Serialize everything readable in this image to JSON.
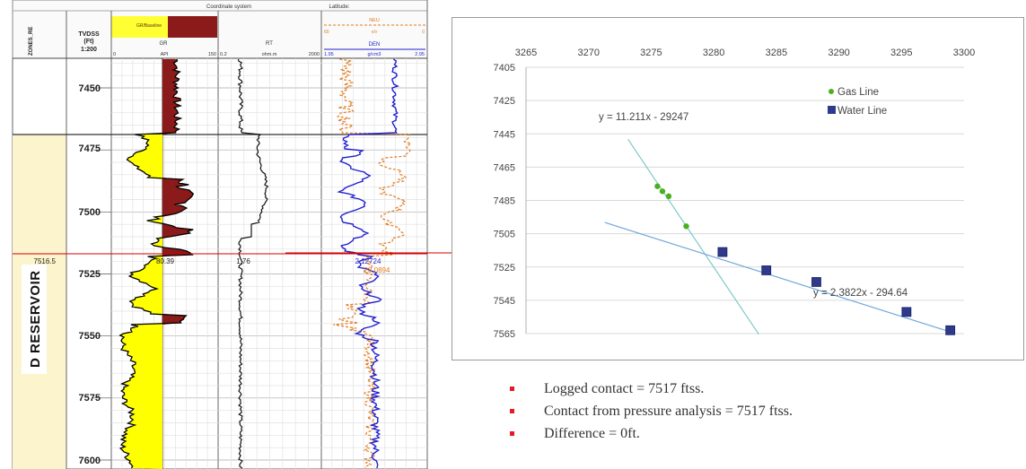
{
  "log": {
    "header": {
      "coord_system": "Coordinate system",
      "latitude": "Latitude:",
      "zones_label": "ZONES_RE",
      "depth_title": [
        "TVDSS",
        "(Ft)",
        "1:200"
      ],
      "gr_title": "GR/Baseline",
      "gr_name": "GR",
      "gr_scale": [
        "0",
        "API",
        "150"
      ],
      "rt_name": "RT",
      "rt_scale": [
        "0.2",
        "ohm.m",
        "2000"
      ],
      "nphi_name": "NEU",
      "nphi_scale": [
        "60",
        "v/v",
        "0"
      ],
      "den_name": "DEN",
      "den_scale": [
        "1.95",
        "g/cm3",
        "2.95"
      ]
    },
    "depth_ticks": [
      "7450",
      "7475",
      "7500",
      "7525",
      "7550",
      "7575",
      "7600"
    ],
    "zone_label": "D RESERVOIR",
    "contact": {
      "depth": "7516.5",
      "gr": "80.39",
      "rt": "1.76",
      "den": "2.12724",
      "nphi": "28.0894"
    },
    "colors": {
      "gr_fill_high": "#8b1a1a",
      "gr_fill_low": "#ffff00",
      "den": "#1f1fd0",
      "neu": "#e07b20",
      "zone": "#fbf4cd",
      "contact": "#d00000"
    }
  },
  "chart_data": {
    "type": "scatter",
    "x_axis": {
      "range": [
        3265,
        3300
      ],
      "ticks": [
        3265,
        3270,
        3275,
        3280,
        3285,
        3290,
        3295,
        3300
      ],
      "position": "top"
    },
    "y_axis": {
      "range": [
        7405,
        7565
      ],
      "ticks": [
        7405,
        7425,
        7445,
        7465,
        7485,
        7505,
        7525,
        7545,
        7565
      ],
      "reversed": true
    },
    "grid": "horizontal",
    "legend": {
      "position": "top-right"
    },
    "series": [
      {
        "name": "Gas Line",
        "marker": "circle",
        "color": "#4caf20",
        "x": [
          3275.5,
          3275.9,
          3276.4,
          3277.8
        ],
        "y": [
          7476.5,
          7479.5,
          7482.5,
          7500.5
        ]
      },
      {
        "name": "Water Line",
        "marker": "square",
        "color": "#2e3a8c",
        "x": [
          3280.7,
          3284.2,
          3288.2,
          3295.4,
          3298.9
        ],
        "y": [
          7516,
          7527,
          7534,
          7552,
          7563
        ]
      }
    ],
    "trendlines": [
      {
        "series": "Gas Line",
        "equation": "y = 11.211x - 29247",
        "slope": 11.211,
        "intercept": -29247,
        "color": "#7ec8c8",
        "x_range": [
          3273.15,
          3283.6
        ]
      },
      {
        "series": "Water Line",
        "equation": "y = 2.3822x - 294.64",
        "slope": 2.3822,
        "intercept": -294.64,
        "color": "#6fa8dc",
        "x_range": [
          3271.3,
          3299.2
        ]
      }
    ],
    "contact_line_depth": 7516.5
  },
  "bullets": [
    "Logged contact = 7517 ftss.",
    "Contact from pressure analysis = 7517 ftss.",
    "Difference = 0ft."
  ]
}
